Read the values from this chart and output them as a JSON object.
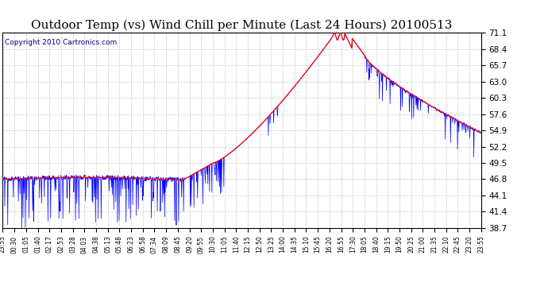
{
  "title": "Outdoor Temp (vs) Wind Chill per Minute (Last 24 Hours) 20100513",
  "copyright": "Copyright 2010 Cartronics.com",
  "yticks": [
    38.7,
    41.4,
    44.1,
    46.8,
    49.5,
    52.2,
    54.9,
    57.6,
    60.3,
    63.0,
    65.7,
    68.4,
    71.1
  ],
  "ymin": 38.7,
  "ymax": 71.1,
  "xtick_labels": [
    "23:55",
    "00:30",
    "01:05",
    "01:40",
    "02:17",
    "02:53",
    "03:28",
    "04:03",
    "04:38",
    "05:13",
    "05:48",
    "06:23",
    "06:58",
    "07:34",
    "08:09",
    "08:45",
    "09:20",
    "09:55",
    "10:30",
    "11:05",
    "11:40",
    "12:15",
    "12:50",
    "13:25",
    "14:00",
    "14:35",
    "15:10",
    "15:45",
    "16:20",
    "16:55",
    "17:30",
    "18:05",
    "18:40",
    "19:15",
    "19:50",
    "20:25",
    "21:00",
    "21:35",
    "22:10",
    "22:45",
    "23:20",
    "23:55"
  ],
  "background_color": "#ffffff",
  "plot_bg_color": "#ffffff",
  "grid_color": "#c8c8c8",
  "title_color": "#000000",
  "red_line_color": "#ff0000",
  "blue_line_color": "#0000ff",
  "title_fontsize": 11,
  "copyright_fontsize": 6.5,
  "copyright_color": "#000080"
}
